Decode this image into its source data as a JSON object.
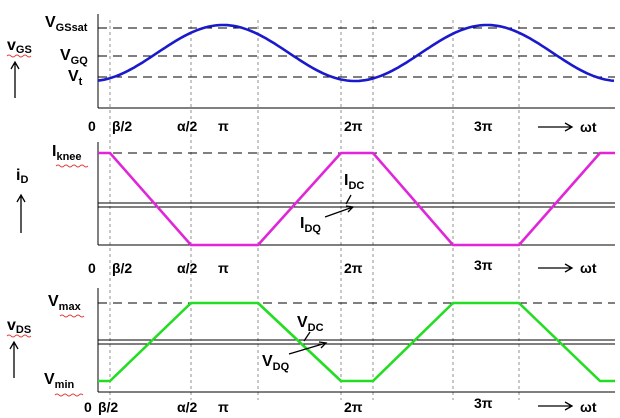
{
  "panel1": {
    "ylabel_main": "v",
    "ylabel_sub": "GS",
    "levels": [
      {
        "main": "V",
        "sub": "GSsat"
      },
      {
        "main": "V",
        "sub": "GQ"
      },
      {
        "main": "V",
        "sub": "t"
      }
    ]
  },
  "panel2": {
    "ylabel_main": "i",
    "ylabel_sub": "D",
    "top_level": {
      "main": "I",
      "sub": "knee"
    },
    "dc_label": {
      "main": "I",
      "sub": "DC"
    },
    "dq_label": {
      "main": "I",
      "sub": "DQ"
    }
  },
  "panel3": {
    "ylabel_main": "v",
    "ylabel_sub": "DS",
    "max_level": {
      "main": "V",
      "sub": "max"
    },
    "min_level": {
      "main": "V",
      "sub": "min"
    },
    "dc_label": {
      "main": "V",
      "sub": "DC"
    },
    "dq_label": {
      "main": "V",
      "sub": "DQ"
    }
  },
  "xaxis": {
    "ticks": [
      "0",
      "β/2",
      "α/2",
      "π",
      "2π",
      "3π"
    ],
    "label": "ωt"
  },
  "colors": {
    "vgs": "#1a1acc",
    "id": "#e026d8",
    "vds": "#22dd22"
  }
}
